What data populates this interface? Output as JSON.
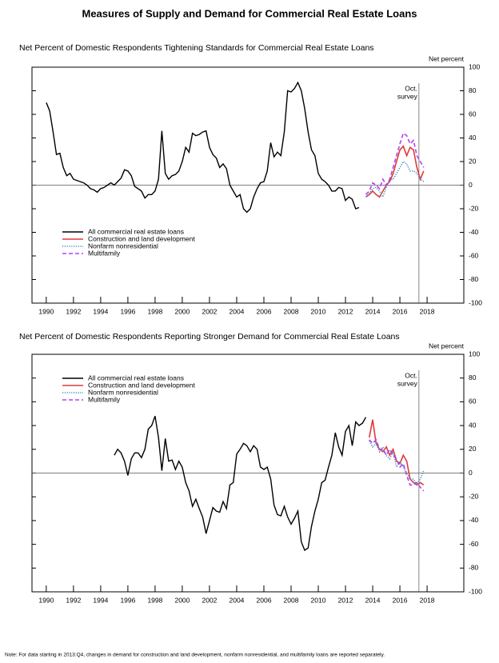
{
  "title": "Measures of Supply and Demand for Commercial Real Estate Loans",
  "note": "Note: For data starting in 2013:Q4, changes in demand for construction and land development, nonfarm nonresidential, and multifamily loans are reported separately.",
  "chart_data": [
    {
      "type": "line",
      "title": "Net Percent of Domestic Respondents Tightening Standards for Commercial Real Estate Loans",
      "y_label": "Net percent",
      "annotation": {
        "lines": [
          "Oct.",
          "survey"
        ],
        "x": 2017.4
      },
      "legend": "lower left",
      "xlim": [
        1988.95,
        2020.7
      ],
      "xticks": [
        1990,
        1992,
        1994,
        1996,
        1998,
        2000,
        2002,
        2004,
        2006,
        2008,
        2010,
        2012,
        2014,
        2016,
        2018
      ],
      "ylim": [
        -100,
        100
      ],
      "yticks": [
        100,
        80,
        60,
        40,
        20,
        0,
        -20,
        -40,
        -60,
        -80,
        -100
      ],
      "series": [
        {
          "name": "All commercial real estate loans",
          "color": "#000000",
          "style": "solid",
          "x": [
            1990,
            1990.25,
            1990.5,
            1990.75,
            1991,
            1991.25,
            1991.5,
            1991.75,
            1992,
            1992.25,
            1992.5,
            1992.75,
            1993,
            1993.25,
            1993.5,
            1993.75,
            1994,
            1994.25,
            1994.5,
            1994.75,
            1995,
            1995.25,
            1995.5,
            1995.75,
            1996,
            1996.25,
            1996.5,
            1996.75,
            1997,
            1997.25,
            1997.5,
            1997.75,
            1998,
            1998.25,
            1998.5,
            1998.75,
            1999,
            1999.25,
            1999.5,
            1999.75,
            2000,
            2000.25,
            2000.5,
            2000.75,
            2001,
            2001.25,
            2001.5,
            2001.75,
            2002,
            2002.25,
            2002.5,
            2002.75,
            2003,
            2003.25,
            2003.5,
            2003.75,
            2004,
            2004.25,
            2004.5,
            2004.75,
            2005,
            2005.25,
            2005.5,
            2005.75,
            2006,
            2006.25,
            2006.5,
            2006.75,
            2007,
            2007.25,
            2007.5,
            2007.75,
            2008,
            2008.25,
            2008.5,
            2008.75,
            2009,
            2009.25,
            2009.5,
            2009.75,
            2010,
            2010.25,
            2010.5,
            2010.75,
            2011,
            2011.25,
            2011.5,
            2011.75,
            2012,
            2012.25,
            2012.5,
            2012.75,
            2013
          ],
          "values": [
            70,
            63,
            45,
            26,
            27,
            15,
            8,
            10,
            5,
            4,
            3,
            2,
            0,
            -3,
            -4,
            -6,
            -3,
            -2,
            0,
            2,
            0,
            3,
            6,
            13,
            12,
            8,
            -1,
            -3,
            -5,
            -11,
            -8,
            -8,
            -5,
            5,
            46,
            10,
            5,
            8,
            9,
            12,
            20,
            32,
            28,
            44,
            42,
            43,
            45,
            46,
            32,
            26,
            23,
            15,
            18,
            14,
            0,
            -5,
            -10,
            -8,
            -20,
            -23,
            -20,
            -10,
            -3,
            2,
            3,
            12,
            36,
            24,
            28,
            25,
            45,
            80,
            79,
            82,
            87,
            80,
            65,
            45,
            30,
            25,
            10,
            5,
            3,
            0,
            -5,
            -5,
            -2,
            -3,
            -13,
            -10,
            -12,
            -20,
            -19
          ]
        },
        {
          "name": "Construction and land development",
          "color": "#e03a3a",
          "style": "solid",
          "x": [
            2013.5,
            2013.75,
            2014,
            2014.25,
            2014.5,
            2014.75,
            2015,
            2015.25,
            2015.5,
            2015.75,
            2016,
            2016.25,
            2016.5,
            2016.75,
            2017,
            2017.25,
            2017.5,
            2017.75
          ],
          "values": [
            -10,
            -8,
            -5,
            -8,
            -10,
            -5,
            0,
            3,
            10,
            20,
            30,
            33,
            25,
            32,
            30,
            15,
            5,
            12
          ]
        },
        {
          "name": "Nonfarm nonresidential",
          "color": "#3f93bf",
          "style": "dotted",
          "x": [
            2013.5,
            2013.75,
            2014,
            2014.25,
            2014.5,
            2014.75,
            2015,
            2015.25,
            2015.5,
            2015.75,
            2016,
            2016.25,
            2016.5,
            2016.75,
            2017,
            2017.25,
            2017.5,
            2017.75
          ],
          "values": [
            -10,
            -7,
            -3,
            -2,
            -5,
            -10,
            -2,
            5,
            5,
            10,
            15,
            20,
            18,
            12,
            12,
            10,
            5,
            3
          ]
        },
        {
          "name": "Multifamily",
          "color": "#b540f0",
          "style": "dashed",
          "x": [
            2013.5,
            2013.75,
            2014,
            2014.25,
            2014.5,
            2014.75,
            2015,
            2015.25,
            2015.5,
            2015.75,
            2016,
            2016.25,
            2016.5,
            2016.75,
            2017,
            2017.25,
            2017.5,
            2017.75
          ],
          "values": [
            -8,
            -5,
            2,
            0,
            -3,
            5,
            0,
            5,
            15,
            25,
            35,
            44,
            42,
            35,
            38,
            25,
            20,
            15
          ]
        }
      ]
    },
    {
      "type": "line",
      "title": "Net Percent of Domestic Respondents Reporting Stronger Demand for Commercial Real Estate Loans",
      "y_label": "Net percent",
      "annotation": {
        "lines": [
          "Oct.",
          "survey"
        ],
        "x": 2017.4
      },
      "legend": "upper left",
      "xlim": [
        1988.95,
        2020.7
      ],
      "xticks": [
        1990,
        1992,
        1994,
        1996,
        1998,
        2000,
        2002,
        2004,
        2006,
        2008,
        2010,
        2012,
        2014,
        2016,
        2018
      ],
      "ylim": [
        -100,
        100
      ],
      "yticks": [
        100,
        80,
        60,
        40,
        20,
        0,
        -20,
        -40,
        -60,
        -80,
        -100
      ],
      "series": [
        {
          "name": "All commercial real estate loans",
          "color": "#000000",
          "style": "solid",
          "x": [
            1995,
            1995.25,
            1995.5,
            1995.75,
            1996,
            1996.25,
            1996.5,
            1996.75,
            1997,
            1997.25,
            1997.5,
            1997.75,
            1998,
            1998.25,
            1998.5,
            1998.75,
            1999,
            1999.25,
            1999.5,
            1999.75,
            2000,
            2000.25,
            2000.5,
            2000.75,
            2001,
            2001.25,
            2001.5,
            2001.75,
            2002,
            2002.25,
            2002.5,
            2002.75,
            2003,
            2003.25,
            2003.5,
            2003.75,
            2004,
            2004.25,
            2004.5,
            2004.75,
            2005,
            2005.25,
            2005.5,
            2005.75,
            2006,
            2006.25,
            2006.5,
            2006.75,
            2007,
            2007.25,
            2007.5,
            2007.75,
            2008,
            2008.25,
            2008.5,
            2008.75,
            2009,
            2009.25,
            2009.5,
            2009.75,
            2010,
            2010.25,
            2010.5,
            2010.75,
            2011,
            2011.25,
            2011.5,
            2011.75,
            2012,
            2012.25,
            2012.5,
            2012.75,
            2013,
            2013.25,
            2013.5
          ],
          "values": [
            15,
            20,
            17,
            10,
            -2,
            12,
            17,
            17,
            13,
            20,
            37,
            40,
            48,
            30,
            2,
            29,
            10,
            11,
            3,
            10,
            5,
            -8,
            -15,
            -28,
            -22,
            -30,
            -37,
            -51,
            -40,
            -29,
            -32,
            -33,
            -24,
            -30,
            -10,
            -8,
            16,
            20,
            25,
            23,
            18,
            23,
            20,
            5,
            3,
            5,
            -5,
            -27,
            -35,
            -36,
            -28,
            -37,
            -43,
            -38,
            -32,
            -58,
            -65,
            -63,
            -45,
            -32,
            -22,
            -8,
            -6,
            5,
            15,
            34,
            22,
            15,
            35,
            40,
            23,
            43,
            40,
            42,
            47
          ]
        },
        {
          "name": "Construction and land development",
          "color": "#e03a3a",
          "style": "solid",
          "x": [
            2013.75,
            2014,
            2014.25,
            2014.5,
            2014.75,
            2015,
            2015.25,
            2015.5,
            2015.75,
            2016,
            2016.25,
            2016.5,
            2016.75,
            2017,
            2017.25,
            2017.5,
            2017.75
          ],
          "values": [
            30,
            45,
            25,
            20,
            18,
            22,
            15,
            20,
            10,
            8,
            15,
            10,
            -5,
            -8,
            -10,
            -8,
            -10
          ]
        },
        {
          "name": "Nonfarm nonresidential",
          "color": "#3f93bf",
          "style": "dotted",
          "x": [
            2013.75,
            2014,
            2014.25,
            2014.5,
            2014.75,
            2015,
            2015.25,
            2015.5,
            2015.75,
            2016,
            2016.25,
            2016.5,
            2016.75,
            2017,
            2017.25,
            2017.5,
            2017.75
          ],
          "values": [
            27,
            22,
            25,
            18,
            22,
            15,
            12,
            18,
            5,
            10,
            5,
            0,
            -5,
            -5,
            -10,
            -5,
            2
          ]
        },
        {
          "name": "Multifamily",
          "color": "#b540f0",
          "style": "dashed",
          "x": [
            2013.75,
            2014,
            2014.25,
            2014.5,
            2014.75,
            2015,
            2015.25,
            2015.5,
            2015.75,
            2016,
            2016.25,
            2016.5,
            2016.75,
            2017,
            2017.25,
            2017.5,
            2017.75
          ],
          "values": [
            28,
            25,
            28,
            20,
            20,
            15,
            20,
            15,
            12,
            5,
            8,
            -2,
            -10,
            -10,
            -8,
            -12,
            -15
          ]
        }
      ]
    }
  ]
}
